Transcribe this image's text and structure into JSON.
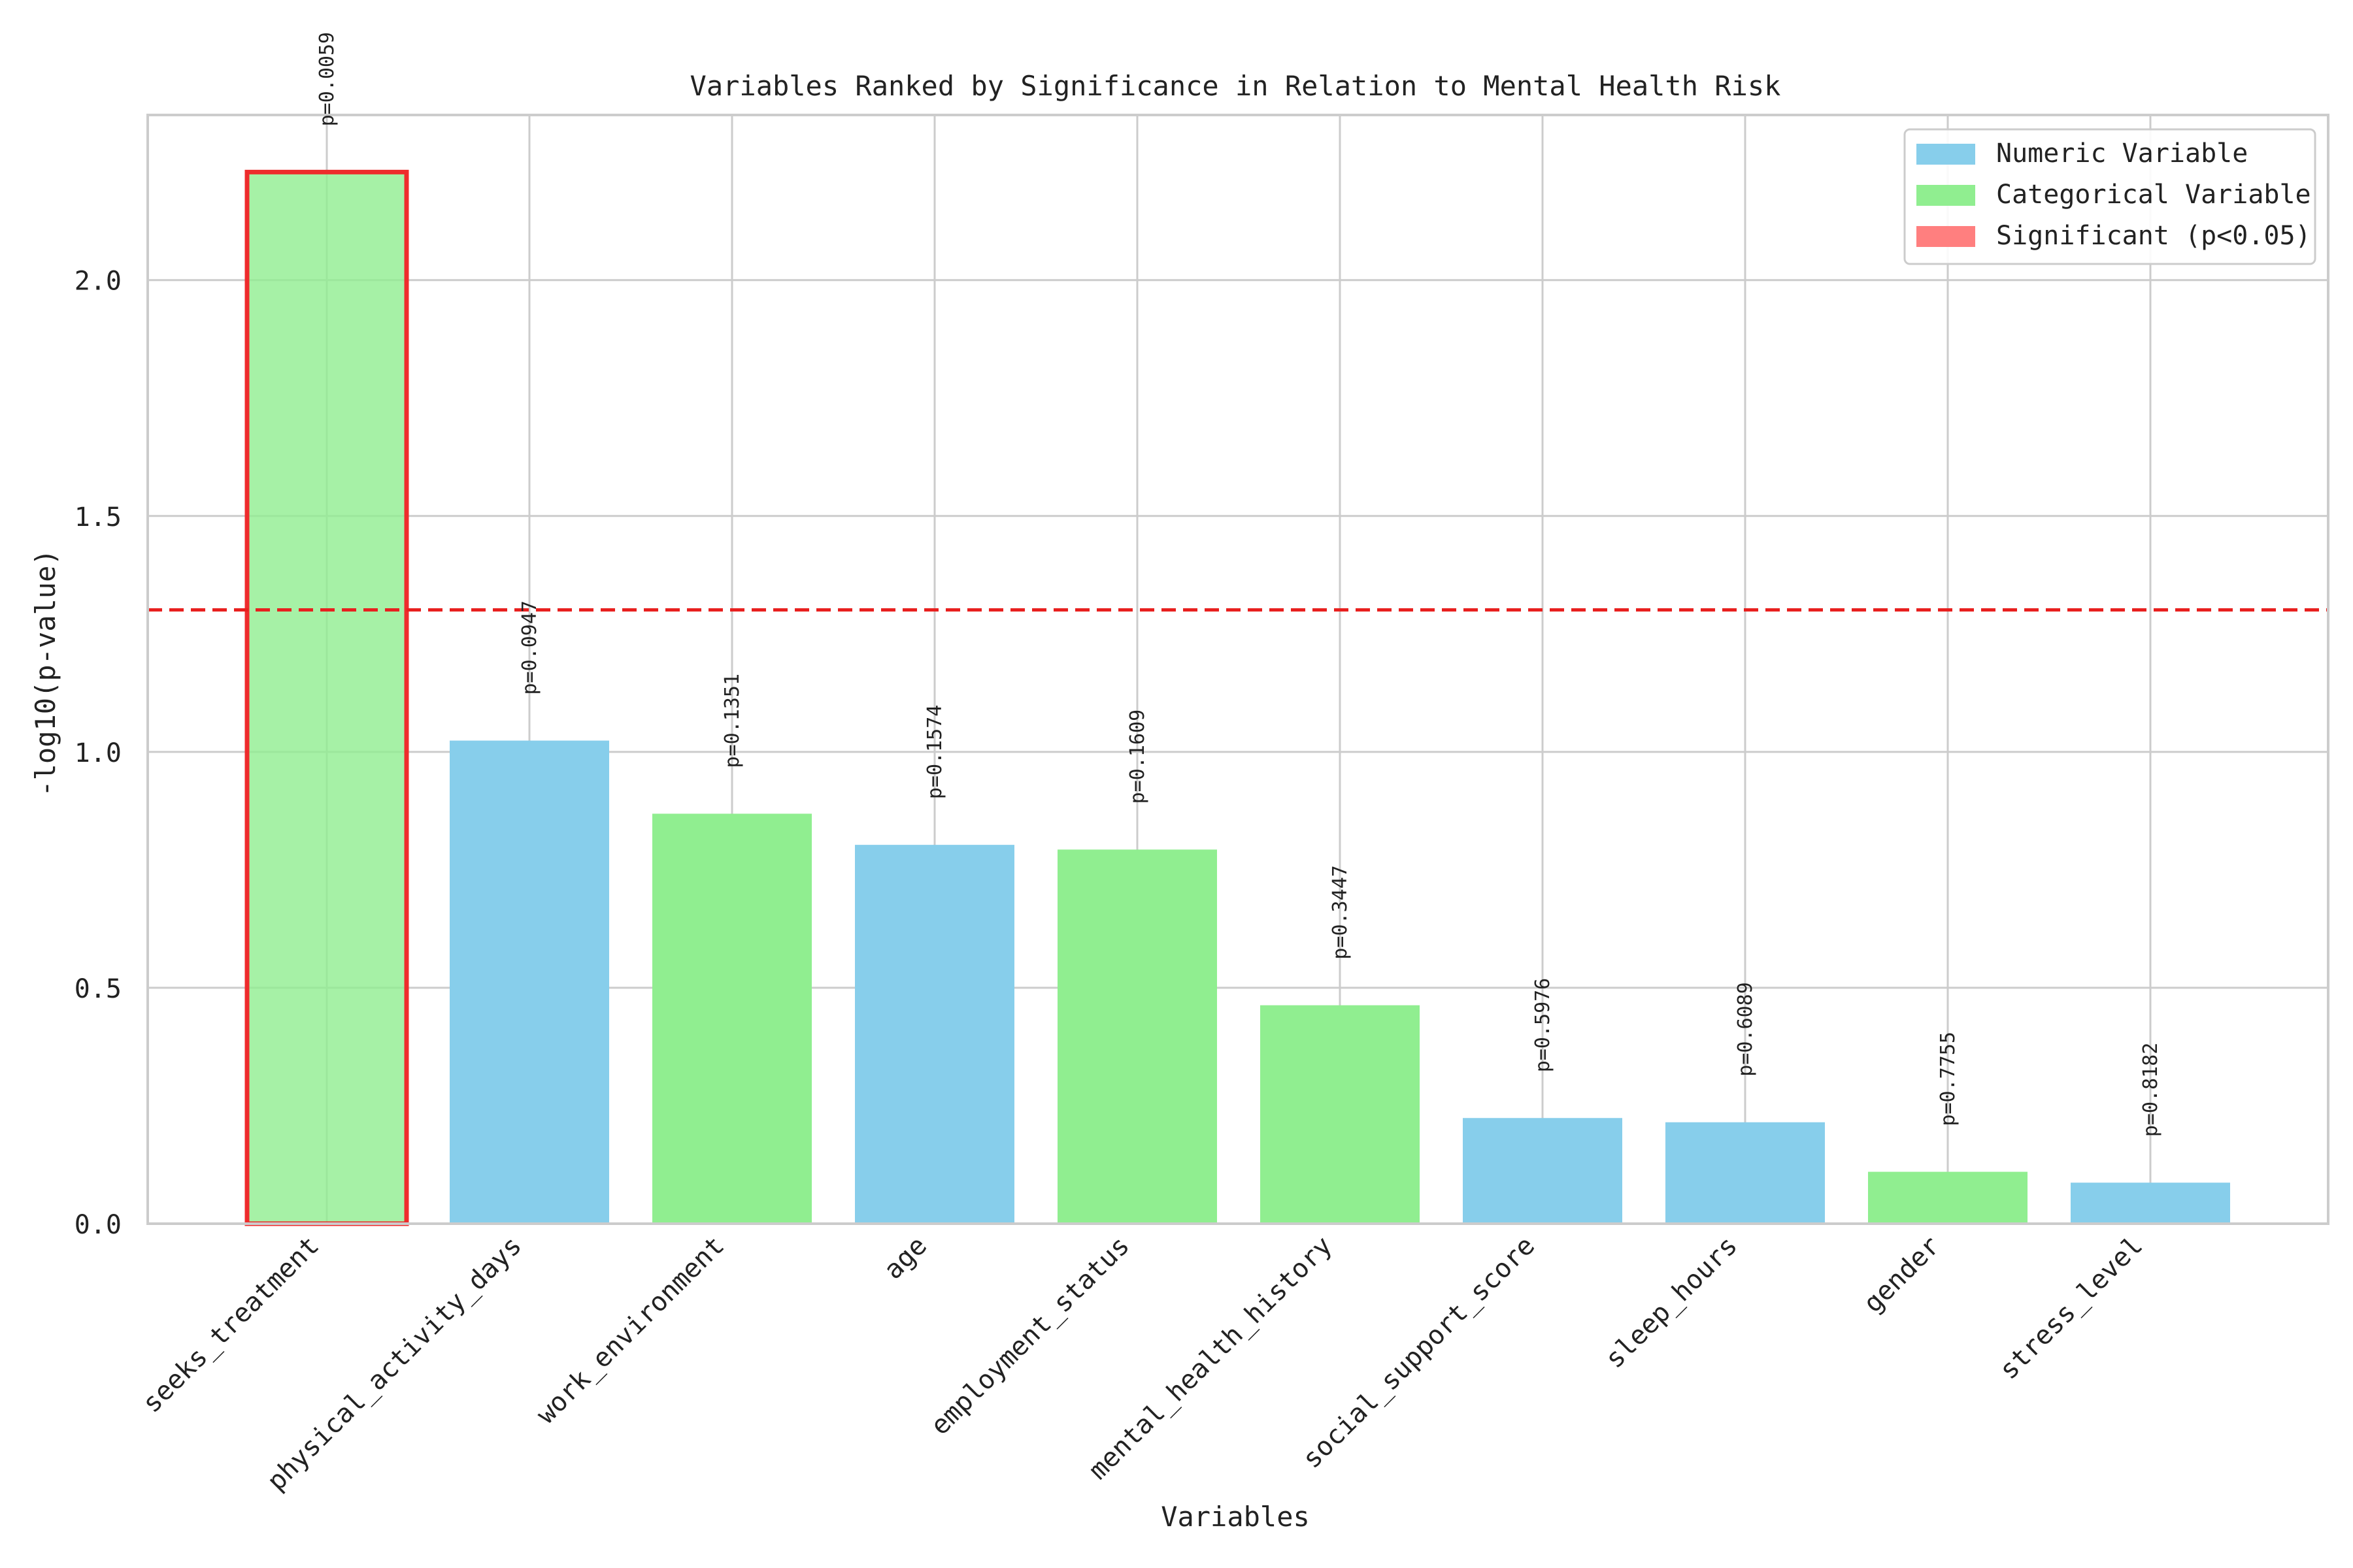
{
  "chart_data": {
    "type": "bar",
    "title": "Variables Ranked by Significance in Relation to Mental Health Risk",
    "xlabel": "Variables",
    "ylabel": "-log10(p-value)",
    "ylim": [
      0,
      2.35
    ],
    "yticks": [
      0.0,
      0.5,
      1.0,
      1.5,
      2.0
    ],
    "ytick_labels": [
      "0.0",
      "0.5",
      "1.0",
      "1.5",
      "2.0"
    ],
    "grid": true,
    "legend_position": "top-right",
    "categories": [
      "seeks_treatment",
      "physical_activity_days",
      "work_environment",
      "age",
      "employment_status",
      "mental_health_history",
      "social_support_score",
      "sleep_hours",
      "gender",
      "stress_level"
    ],
    "values": [
      2.229,
      1.024,
      0.869,
      0.803,
      0.793,
      0.463,
      0.224,
      0.215,
      0.11,
      0.087
    ],
    "variable_types": [
      "categorical",
      "numeric",
      "categorical",
      "numeric",
      "categorical",
      "categorical",
      "numeric",
      "numeric",
      "categorical",
      "numeric"
    ],
    "significant": [
      true,
      false,
      false,
      false,
      false,
      false,
      false,
      false,
      false,
      false
    ],
    "bar_labels": [
      "p=0.0059",
      "p=0.0947",
      "p=0.1351",
      "p=0.1574",
      "p=0.1609",
      "p=0.3447",
      "p=0.5976",
      "p=0.6089",
      "p=0.7755",
      "p=0.8182"
    ],
    "threshold": 1.301,
    "legend": [
      {
        "label": "Numeric Variable",
        "color": "#87ceeb"
      },
      {
        "label": "Categorical Variable",
        "color": "#90ee90"
      },
      {
        "label": "Significant (p<0.05)",
        "color": "#ff7f7f"
      }
    ],
    "colors": {
      "numeric": "#87ceeb",
      "categorical": "#90ee90",
      "significant_edge": "#ee2c2c",
      "threshold_line": "#e8201f",
      "grid": "#cccccc",
      "axes": "#cccccc",
      "text": "#222222"
    }
  }
}
